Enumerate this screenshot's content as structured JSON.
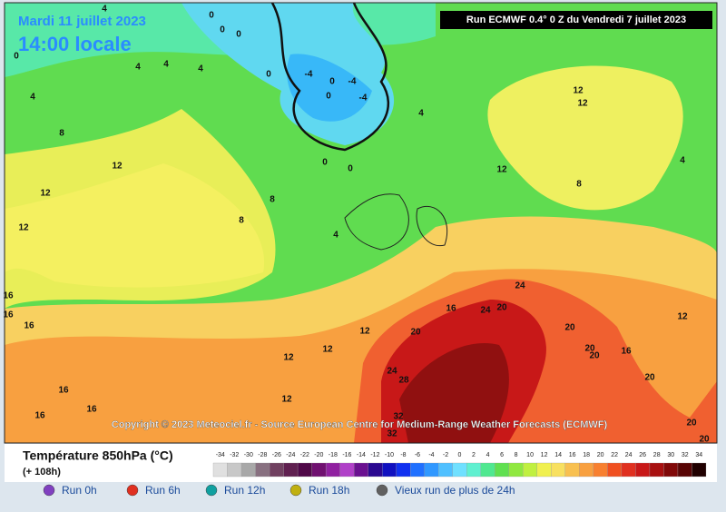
{
  "map": {
    "date": "Mardi 11 juillet 2023",
    "time": "14:00 locale",
    "run": "Run ECMWF 0.4° 0 Z du Vendredi 7 juillet 2023",
    "copyright": "Copyright © 2023 Meteociel.fr - Source European Centre for Medium-Range Weather Forecasts (ECMWF)",
    "contour_labels": [
      4,
      0,
      0,
      0,
      0,
      4,
      4,
      4,
      0,
      -4,
      0,
      -4,
      -4,
      0,
      4,
      4,
      8,
      12,
      12,
      0,
      0,
      8,
      8,
      4,
      12,
      8,
      4,
      12,
      12,
      12,
      16,
      16,
      16,
      16,
      24,
      24,
      20,
      20,
      20,
      12,
      12,
      12,
      12,
      20,
      16,
      20,
      24,
      28,
      20,
      16,
      16,
      16,
      12,
      32,
      32,
      20,
      20
    ]
  },
  "legend": {
    "title": "Température 850hPa (°C)",
    "subtitle": "(+ 108h)",
    "scale": [
      {
        "value": -34,
        "color": "#e0e0e0"
      },
      {
        "value": -32,
        "color": "#c8c8c8"
      },
      {
        "value": -30,
        "color": "#a8a8a8"
      },
      {
        "value": -28,
        "color": "#887080"
      },
      {
        "value": -26,
        "color": "#704060"
      },
      {
        "value": -24,
        "color": "#602050"
      },
      {
        "value": -22,
        "color": "#500848"
      },
      {
        "value": -20,
        "color": "#701070"
      },
      {
        "value": -18,
        "color": "#9020a0"
      },
      {
        "value": -16,
        "color": "#b040c8"
      },
      {
        "value": -14,
        "color": "#6a1090"
      },
      {
        "value": -12,
        "color": "#2a0890"
      },
      {
        "value": -10,
        "color": "#1010c0"
      },
      {
        "value": -8,
        "color": "#1030f0"
      },
      {
        "value": -6,
        "color": "#2070ff"
      },
      {
        "value": -4,
        "color": "#3098ff"
      },
      {
        "value": -2,
        "color": "#50c0ff"
      },
      {
        "value": 0,
        "color": "#70e0ff"
      },
      {
        "value": 2,
        "color": "#60f0d0"
      },
      {
        "value": 4,
        "color": "#50e890"
      },
      {
        "value": 6,
        "color": "#60e050"
      },
      {
        "value": 8,
        "color": "#90e840"
      },
      {
        "value": 10,
        "color": "#c0f040"
      },
      {
        "value": 12,
        "color": "#f0f050"
      },
      {
        "value": 14,
        "color": "#f8e060"
      },
      {
        "value": 16,
        "color": "#f8c050"
      },
      {
        "value": 18,
        "color": "#f8a040"
      },
      {
        "value": 20,
        "color": "#f88030"
      },
      {
        "value": 22,
        "color": "#f05020"
      },
      {
        "value": 24,
        "color": "#e03020"
      },
      {
        "value": 26,
        "color": "#c81818"
      },
      {
        "value": 28,
        "color": "#a81010"
      },
      {
        "value": 30,
        "color": "#800808"
      },
      {
        "value": 32,
        "color": "#580404"
      },
      {
        "value": 34,
        "color": "#200000"
      }
    ]
  },
  "buttons": [
    {
      "label": "Run 0h",
      "color": "#8040c0"
    },
    {
      "label": "Run 6h",
      "color": "#e03020"
    },
    {
      "label": "Run 12h",
      "color": "#10a0a0"
    },
    {
      "label": "Run 18h",
      "color": "#c0b010"
    },
    {
      "label": "Vieux run de plus de 24h",
      "color": "#606060"
    }
  ]
}
